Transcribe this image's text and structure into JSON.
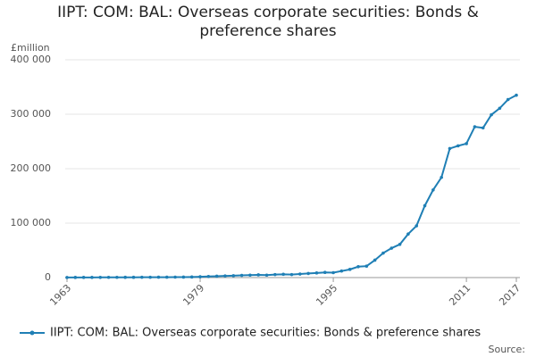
{
  "chart_data": {
    "type": "line",
    "title": "IIPT: COM: BAL: Overseas corporate securities: Bonds & preference shares",
    "y_label": "£million",
    "source": "Source:",
    "x": [
      1963,
      1964,
      1965,
      1966,
      1967,
      1968,
      1969,
      1970,
      1971,
      1972,
      1973,
      1974,
      1975,
      1976,
      1977,
      1978,
      1979,
      1980,
      1981,
      1982,
      1983,
      1984,
      1985,
      1986,
      1987,
      1988,
      1989,
      1990,
      1991,
      1992,
      1993,
      1994,
      1995,
      1996,
      1997,
      1998,
      1999,
      2000,
      2001,
      2002,
      2003,
      2004,
      2005,
      2006,
      2007,
      2008,
      2009,
      2010,
      2011,
      2012,
      2013,
      2014,
      2015,
      2016,
      2017
    ],
    "series": [
      {
        "name": "IIPT: COM: BAL: Overseas corporate securities: Bonds & preference shares",
        "color": "#1f7fb5",
        "values": [
          200,
          250,
          300,
          300,
          350,
          400,
          400,
          450,
          500,
          550,
          600,
          650,
          700,
          800,
          900,
          1100,
          1500,
          2000,
          2500,
          3000,
          3500,
          4000,
          4500,
          5000,
          4500,
          5500,
          6000,
          5500,
          6500,
          7500,
          8500,
          9500,
          9000,
          12000,
          15000,
          20000,
          21000,
          32000,
          45000,
          54000,
          61000,
          80000,
          95000,
          132000,
          161000,
          184000,
          237000,
          242000,
          246000,
          277000,
          275000,
          299000,
          311000,
          327000,
          335000
        ]
      }
    ],
    "xlim": [
      1963,
      2017
    ],
    "xticks": [
      1963,
      1979,
      1995,
      2011,
      2017
    ],
    "ylim": [
      0,
      400000
    ],
    "yticks": [
      0,
      {
        "value": 100000,
        "label": "100 000"
      },
      {
        "value": 200000,
        "label": "200 000"
      },
      {
        "value": 300000,
        "label": "300 000"
      },
      {
        "value": 400000,
        "label": "400 000"
      }
    ],
    "grid": true
  }
}
